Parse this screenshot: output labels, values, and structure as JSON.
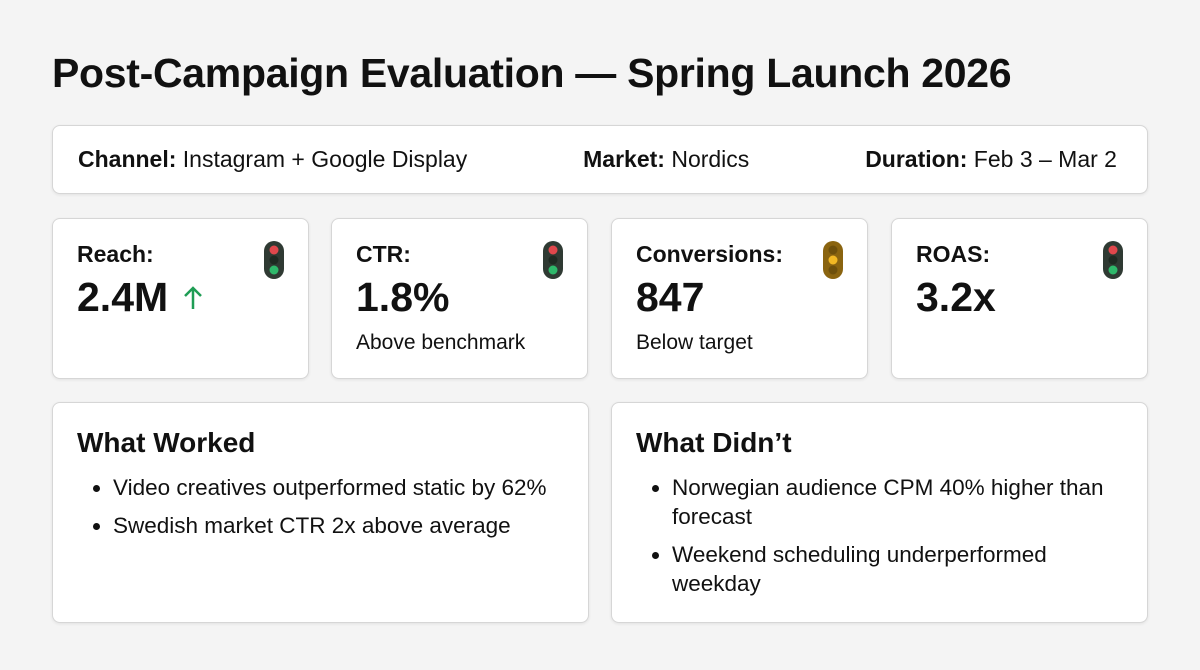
{
  "header": {
    "title": "Post-Campaign Evaluation — Spring Launch 2026"
  },
  "meta": [
    {
      "label": "Channel:",
      "value": "Instagram + Google Display"
    },
    {
      "label": "Market:",
      "value": "Nordics"
    },
    {
      "label": "Duration:",
      "value": "Feb 3 – Mar 2"
    }
  ],
  "kpis": [
    {
      "label": "Reach:",
      "value": "2.4M"
    },
    {
      "label": "CTR:",
      "value": "1.8%",
      "note": "Above benchmark"
    },
    {
      "label": "Conversions:",
      "value": "847",
      "note": "Below target"
    },
    {
      "label": "ROAS:",
      "value": "3.2x"
    }
  ],
  "sections": [
    {
      "title": "What Worked",
      "items": [
        "Video creatives outperformed static by 62%",
        "Swedish market CTR 2x above average"
      ]
    },
    {
      "title": "What Didn’t",
      "items": [
        "Norwegian audience CPM 40% higher than forecast",
        "Weekend scheduling underperformed weekday"
      ]
    }
  ]
}
